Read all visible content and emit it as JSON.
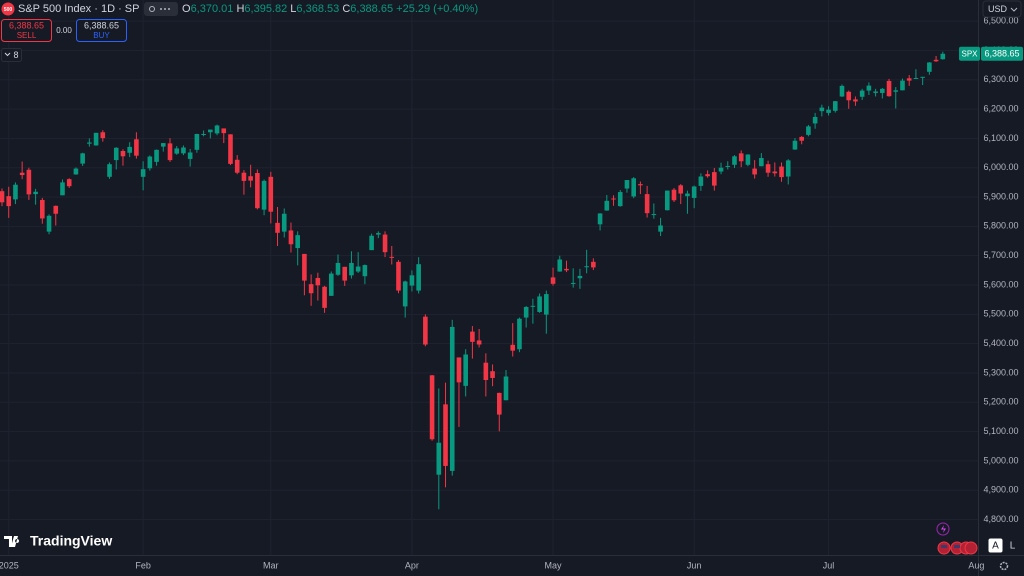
{
  "header": {
    "symbol_badge": "500",
    "title": "S&P 500 Index · 1D · SP",
    "ohlc": [
      {
        "label": "O",
        "value": "6,370.01"
      },
      {
        "label": "H",
        "value": "6,395.82"
      },
      {
        "label": "L",
        "value": "6,368.53"
      },
      {
        "label": "C",
        "value": "6,388.65"
      }
    ],
    "change": "+25.29 (+0.40%)"
  },
  "trade": {
    "sell_price": "6,388.65",
    "sell": "SELL",
    "spread": "0.00",
    "buy_price": "6,388.65",
    "buy": "BUY"
  },
  "indicators_count": "8",
  "currency": "USD",
  "chart_data": {
    "type": "candlestick",
    "categories": [
      null,
      "2025",
      null,
      null,
      null,
      null,
      null,
      null,
      null,
      null,
      null,
      null,
      null,
      null,
      null,
      null,
      null,
      null,
      null,
      null,
      null,
      "Feb",
      null,
      null,
      null,
      null,
      null,
      null,
      null,
      null,
      null,
      null,
      null,
      null,
      null,
      null,
      null,
      null,
      null,
      null,
      "Mar",
      null,
      null,
      null,
      null,
      null,
      null,
      null,
      null,
      null,
      null,
      null,
      null,
      null,
      null,
      null,
      null,
      null,
      null,
      null,
      null,
      "Apr",
      null,
      null,
      null,
      null,
      null,
      null,
      null,
      null,
      null,
      null,
      null,
      null,
      null,
      null,
      null,
      null,
      null,
      null,
      null,
      null,
      "May",
      null,
      null,
      null,
      null,
      null,
      null,
      null,
      null,
      null,
      null,
      null,
      null,
      null,
      null,
      null,
      null,
      null,
      null,
      null,
      null,
      "Jun",
      null,
      null,
      null,
      null,
      null,
      null,
      null,
      null,
      null,
      null,
      null,
      null,
      null,
      null,
      null,
      null,
      null,
      null,
      null,
      "Jul",
      null,
      null,
      null,
      null,
      null,
      null,
      null,
      null,
      null,
      null,
      null,
      null,
      null,
      null,
      null,
      null,
      null
    ],
    "open": [
      5920,
      5903,
      5892,
      5983,
      5993,
      5910,
      5890,
      5782,
      5870,
      5906,
      5961,
      5977,
      6014,
      6082,
      6076,
      6121,
      5969,
      6026,
      6057,
      6051,
      6097,
      5969,
      5998,
      6020,
      6072,
      6083,
      6048,
      6049,
      6030,
      6061,
      6115,
      6121,
      6117,
      6134,
      6114,
      6027,
      5983,
      5971,
      5982,
      5857,
      5969,
      5812,
      5782,
      5786,
      5726,
      5706,
      5603,
      5624,
      5594,
      5563,
      5635,
      5662,
      5633,
      5646,
      5630,
      5719,
      5772,
      5772,
      5696,
      5679,
      5527,
      5598,
      5581,
      5492,
      5292,
      4953,
      5193,
      4966,
      5353,
      5256,
      5441,
      5411,
      5335,
      5306,
      5232,
      5207,
      5396,
      5381,
      5489,
      5529,
      5508,
      5499,
      5626,
      5646,
      5655,
      5605,
      5623,
      5663,
      5679,
      5807,
      5854,
      5895,
      5869,
      5929,
      5902,
      5944,
      5910,
      5841,
      5782,
      5855,
      5925,
      5940,
      5903,
      5897,
      5938,
      5978,
      5985,
      5987,
      6005,
      6010,
      6049,
      6010,
      5997,
      6005,
      6012,
      5987,
      6004,
      5970,
      6062,
      6105,
      6112,
      6151,
      6193,
      6187,
      6194,
      6243,
      6259,
      6233,
      6242,
      6263,
      6255,
      6255,
      6296,
      6259,
      6264,
      6305,
      6304,
      6307,
      6327,
      6368,
      6370.01
    ],
    "high": [
      5929,
      5935,
      5950,
      6021,
      6000,
      5928,
      5897,
      5841,
      5871,
      5960,
      5964,
      6001,
      6051,
      6100,
      6119,
      6128,
      6018,
      6070,
      6063,
      6087,
      6121,
      6022,
      6042,
      6062,
      6084,
      6101,
      6074,
      6076,
      6064,
      6116,
      6127,
      6130,
      6147,
      6134,
      6114,
      6043,
      5992,
      6010,
      5994,
      5960,
      5986,
      5866,
      5861,
      5813,
      5783,
      5706,
      5636,
      5642,
      5597,
      5646,
      5704,
      5662,
      5715,
      5712,
      5670,
      5775,
      5783,
      5783,
      5733,
      5685,
      5615,
      5650,
      5695,
      5500,
      5293,
      5247,
      5267,
      5481,
      5353,
      5381,
      5460,
      5450,
      5367,
      5329,
      5233,
      5310,
      5470,
      5489,
      5528,
      5553,
      5571,
      5581,
      5659,
      5700,
      5683,
      5657,
      5655,
      5720,
      5691,
      5845,
      5907,
      5906,
      5924,
      5958,
      5968,
      5953,
      5938,
      5878,
      5829,
      5922,
      5931,
      5944,
      5922,
      5939,
      5981,
      5991,
      5999,
      6017,
      6022,
      6043,
      6059,
      6046,
      6026,
      6050,
      6024,
      6018,
      6018,
      6029,
      6101,
      6108,
      6146,
      6187,
      6215,
      6210,
      6227,
      6284,
      6263,
      6243,
      6269,
      6291,
      6269,
      6272,
      6303,
      6275,
      6304,
      6316,
      6336,
      6310,
      6360,
      6381,
      6395.82
    ],
    "low": [
      5869,
      5829,
      5876,
      5961,
      5890,
      5874,
      5809,
      5773,
      5803,
      5906,
      5931,
      5976,
      6006,
      6072,
      6075,
      6089,
      5962,
      5994,
      6007,
      6036,
      6031,
      5923,
      5990,
      6007,
      6055,
      6020,
      6044,
      6043,
      6004,
      6051,
      6107,
      6100,
      6111,
      6084,
      6009,
      5978,
      5908,
      5933,
      5858,
      5838,
      5810,
      5733,
      5762,
      5711,
      5667,
      5565,
      5529,
      5547,
      5505,
      5563,
      5631,
      5597,
      5622,
      5641,
      5603,
      5719,
      5760,
      5695,
      5670,
      5572,
      5489,
      5578,
      5571,
      5391,
      5069,
      4835,
      4910,
      4950,
      5116,
      5220,
      5349,
      5387,
      5220,
      5255,
      5101,
      5207,
      5356,
      5371,
      5455,
      5468,
      5505,
      5434,
      5598,
      5645,
      5644,
      5591,
      5587,
      5640,
      5651,
      5786,
      5853,
      5870,
      5867,
      5915,
      5896,
      5910,
      5830,
      5826,
      5767,
      5854,
      5883,
      5876,
      5843,
      5862,
      5921,
      5966,
      5922,
      5978,
      5994,
      5999,
      6002,
      6005,
      5963,
      6005,
      5969,
      5970,
      5952,
      5943,
      6061,
      6080,
      6107,
      6133,
      6175,
      6178,
      6188,
      6241,
      6201,
      6211,
      6231,
      6248,
      6243,
      6236,
      6242,
      6202,
      6264,
      6279,
      6303,
      6282,
      6317,
      6361,
      6368.53
    ],
    "close": [
      5882,
      5869,
      5942,
      5975,
      5909,
      5918,
      5827,
      5836,
      5843,
      5950,
      5937,
      5997,
      6049,
      6086,
      6119,
      6101,
      6012,
      6068,
      6039,
      6071,
      6041,
      5995,
      6038,
      6061,
      6084,
      6026,
      6066,
      6069,
      6052,
      6115,
      6115,
      6130,
      6144,
      6118,
      6013,
      5983,
      5955,
      5956,
      5862,
      5955,
      5850,
      5778,
      5843,
      5739,
      5770,
      5615,
      5572,
      5599,
      5522,
      5639,
      5675,
      5615,
      5675,
      5663,
      5668,
      5768,
      5777,
      5712,
      5693,
      5581,
      5612,
      5633,
      5671,
      5397,
      5074,
      5062,
      4983,
      5457,
      5268,
      5363,
      5406,
      5397,
      5276,
      5283,
      5158,
      5288,
      5376,
      5485,
      5525,
      5529,
      5561,
      5569,
      5604,
      5687,
      5650,
      5607,
      5631,
      5664,
      5660,
      5844,
      5887,
      5893,
      5917,
      5958,
      5964,
      5940,
      5845,
      5842,
      5803,
      5922,
      5889,
      5912,
      5912,
      5936,
      5970,
      5971,
      5939,
      6000,
      6006,
      6039,
      6022,
      6045,
      5977,
      6033,
      5983,
      5981,
      5968,
      6025,
      6092,
      6092,
      6141,
      6173,
      6205,
      6198,
      6227,
      6279,
      6230,
      6226,
      6263,
      6280,
      6260,
      6269,
      6244,
      6264,
      6297,
      6297,
      6306,
      6310,
      6359,
      6363,
      6388.65
    ],
    "up_color": "#089981",
    "down_color": "#f23645",
    "ylim": [
      4686,
      6572
    ],
    "yticks": [
      {
        "value": 6500,
        "label": "6,500.00"
      },
      {
        "value": 6400,
        "label": "6,400.00"
      },
      {
        "value": 6300,
        "label": "6,300.00"
      },
      {
        "value": 6200,
        "label": "6,200.00"
      },
      {
        "value": 6100,
        "label": "6,100.00"
      },
      {
        "value": 6000,
        "label": "6,000.00"
      },
      {
        "value": 5900,
        "label": "5,900.00"
      },
      {
        "value": 5800,
        "label": "5,800.00"
      },
      {
        "value": 5700,
        "label": "5,700.00"
      },
      {
        "value": 5600,
        "label": "5,600.00"
      },
      {
        "value": 5500,
        "label": "5,500.00"
      },
      {
        "value": 5400,
        "label": "5,400.00"
      },
      {
        "value": 5300,
        "label": "5,300.00"
      },
      {
        "value": 5200,
        "label": "5,200.00"
      },
      {
        "value": 5100,
        "label": "5,100.00"
      },
      {
        "value": 5000,
        "label": "5,000.00"
      },
      {
        "value": 4900,
        "label": "4,900.00"
      },
      {
        "value": 4800,
        "label": "4,800.00"
      }
    ],
    "grid": true,
    "future_label": "Aug",
    "last_price": {
      "symbol": "SPX",
      "label": "6,388.65"
    }
  },
  "footer": {
    "logo": "TradingView",
    "scale_auto": "A",
    "scale_log": "L"
  }
}
